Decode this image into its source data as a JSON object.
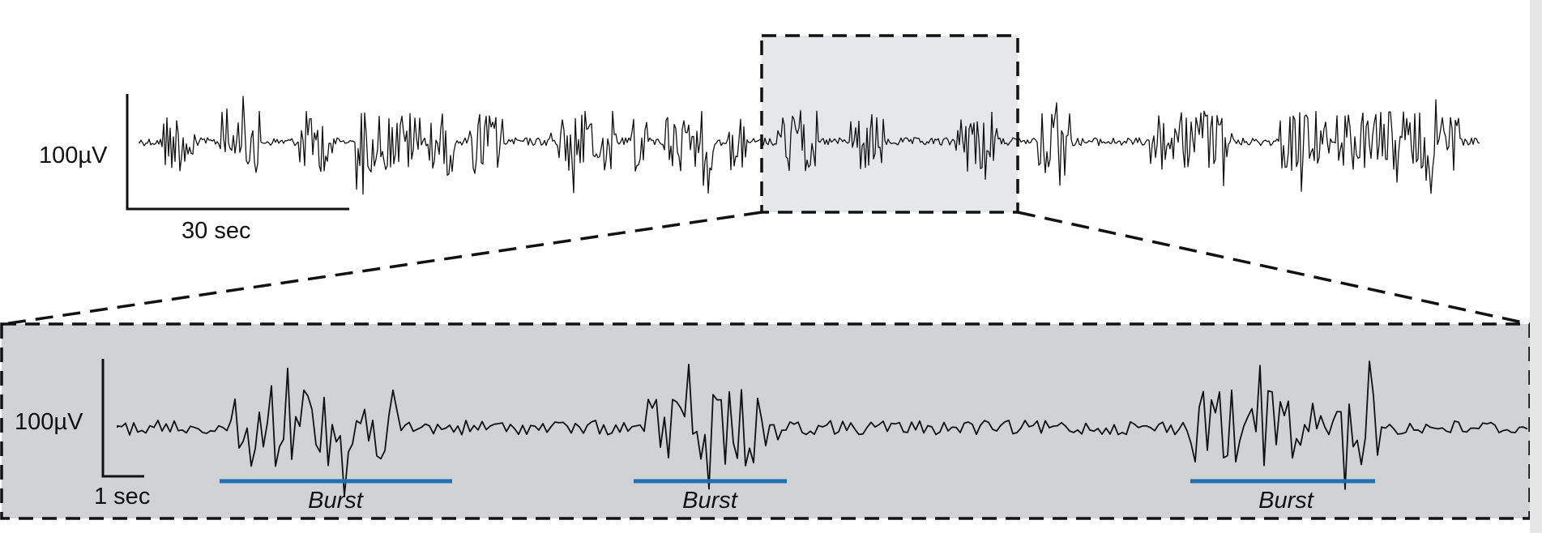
{
  "overview": {
    "scale_bar": {
      "vertical_label": "100µV",
      "horizontal_label": "30 sec"
    }
  },
  "detail": {
    "scale_bar": {
      "vertical_label": "100µV",
      "horizontal_label": "1 sec"
    },
    "bursts": [
      {
        "label": "Burst"
      },
      {
        "label": "Burst"
      },
      {
        "label": "Burst"
      }
    ]
  },
  "colors": {
    "trace": "#111111",
    "highlight_fill": "#e6e7e8",
    "detail_fill": "#d1d2d4",
    "burst_bar": "#1f6fb5",
    "dashes": "#111111"
  }
}
